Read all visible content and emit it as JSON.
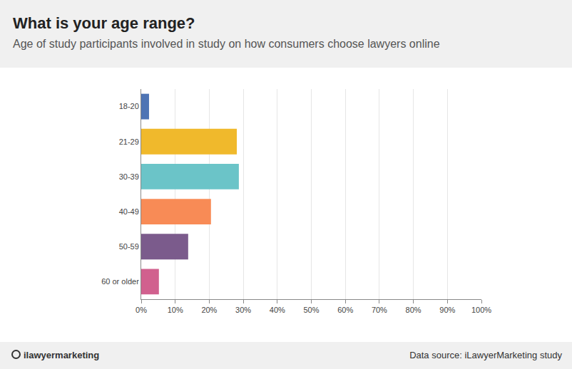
{
  "chart_data": {
    "type": "bar",
    "orientation": "horizontal",
    "title": "What is your age range?",
    "subtitle": "Age of study participants involved in study on how consumers choose lawyers online",
    "categories": [
      "18-20",
      "21-29",
      "30-39",
      "40-49",
      "50-59",
      "60 or older"
    ],
    "values": [
      2.3,
      28.1,
      28.7,
      20.5,
      13.8,
      5.2
    ],
    "colors": [
      "#4e74b4",
      "#f0b92c",
      "#6bc4c8",
      "#f88b56",
      "#7b5b8c",
      "#d1608e"
    ],
    "xlim": [
      0,
      100
    ],
    "xticks": [
      {
        "value": 0,
        "label": "0%"
      },
      {
        "value": 10,
        "label": "10%"
      },
      {
        "value": 20,
        "label": "20%"
      },
      {
        "value": 30,
        "label": "30%"
      },
      {
        "value": 40,
        "label": "40%"
      },
      {
        "value": 50,
        "label": "50%"
      },
      {
        "value": 60,
        "label": "60%"
      },
      {
        "value": 70,
        "label": "70%"
      },
      {
        "value": 80,
        "label": "80%"
      },
      {
        "value": 90,
        "label": "90%"
      },
      {
        "value": 100,
        "label": "100%"
      }
    ],
    "grid": true,
    "brand": "ilawyermarketing",
    "source": "Data source: iLawyerMarketing study"
  }
}
